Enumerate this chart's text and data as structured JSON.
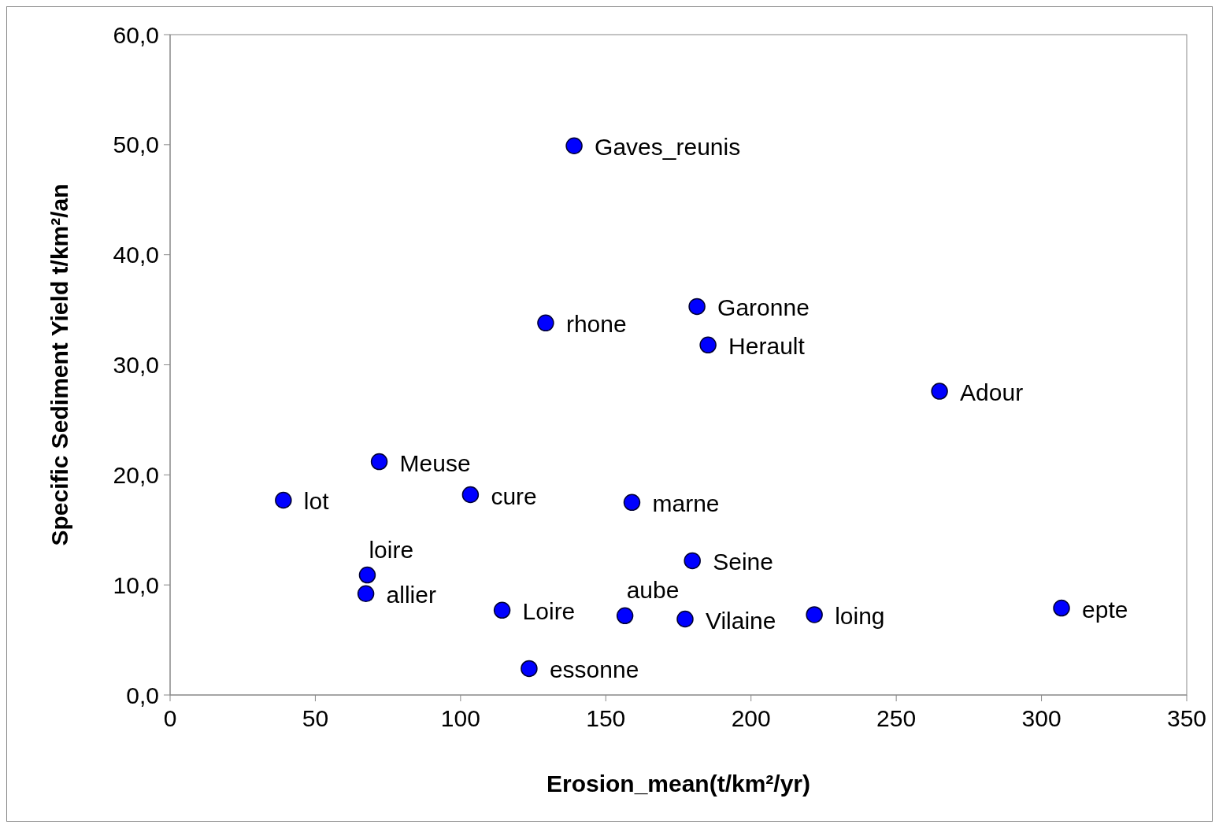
{
  "chart_data": {
    "type": "scatter",
    "xlabel": "Erosion_mean(t/km²/yr)",
    "ylabel": "Specific Sediment Yield t/km²/an",
    "x": [
      139.1,
      129.3,
      181.4,
      185.2,
      264.9,
      72.0,
      39.0,
      103.4,
      159.0,
      67.4,
      67.9,
      179.8,
      114.3,
      156.6,
      177.3,
      221.8,
      306.9,
      123.6
    ],
    "series": [
      {
        "color": "#0000ff",
        "values": [
          49.9,
          33.8,
          35.3,
          31.8,
          27.6,
          21.2,
          17.7,
          18.2,
          17.5,
          9.2,
          10.9,
          12.2,
          7.7,
          7.2,
          6.9,
          7.3,
          7.9,
          2.4
        ]
      }
    ],
    "marker": "circle",
    "grid": false,
    "xlim": [
      0,
      350
    ],
    "xticks": [
      0,
      50,
      100,
      150,
      200,
      250,
      300,
      350
    ],
    "ylim": [
      0,
      60
    ],
    "yticks": [
      {
        "value": 0,
        "label": "0,0"
      },
      {
        "value": 10,
        "label": "10,0"
      },
      {
        "value": 20,
        "label": "20,0"
      },
      {
        "value": 30,
        "label": "30,0"
      },
      {
        "value": 40,
        "label": "40,0"
      },
      {
        "value": 50,
        "label": "50,0"
      },
      {
        "value": 60,
        "label": "60,0"
      }
    ],
    "annotations": [
      {
        "text": "Gaves_reunis",
        "x": 139.1,
        "y": 49.9
      },
      {
        "text": "rhone",
        "x": 129.3,
        "y": 33.8
      },
      {
        "text": "Garonne",
        "x": 181.4,
        "y": 35.3
      },
      {
        "text": "Herault",
        "x": 185.2,
        "y": 31.8
      },
      {
        "text": "Adour",
        "x": 264.9,
        "y": 27.6
      },
      {
        "text": "Meuse",
        "x": 72.0,
        "y": 21.2
      },
      {
        "text": "lot",
        "x": 39.0,
        "y": 17.7
      },
      {
        "text": "cure",
        "x": 103.4,
        "y": 18.2
      },
      {
        "text": "marne",
        "x": 159.0,
        "y": 17.5
      },
      {
        "text": "allier",
        "x": 67.4,
        "y": 9.2
      },
      {
        "text": "loire",
        "x": 67.9,
        "y": 10.9
      },
      {
        "text": "Seine",
        "x": 179.8,
        "y": 12.2
      },
      {
        "text": "Loire",
        "x": 114.3,
        "y": 7.7
      },
      {
        "text": "Vilaine",
        "x": 177.3,
        "y": 6.9
      },
      {
        "text": "aube",
        "x": 156.6,
        "y": 7.2
      },
      {
        "text": "loing",
        "x": 221.8,
        "y": 7.3
      },
      {
        "text": "epte",
        "x": 306.9,
        "y": 7.9
      },
      {
        "text": "essonne",
        "x": 123.6,
        "y": 2.4
      }
    ]
  }
}
